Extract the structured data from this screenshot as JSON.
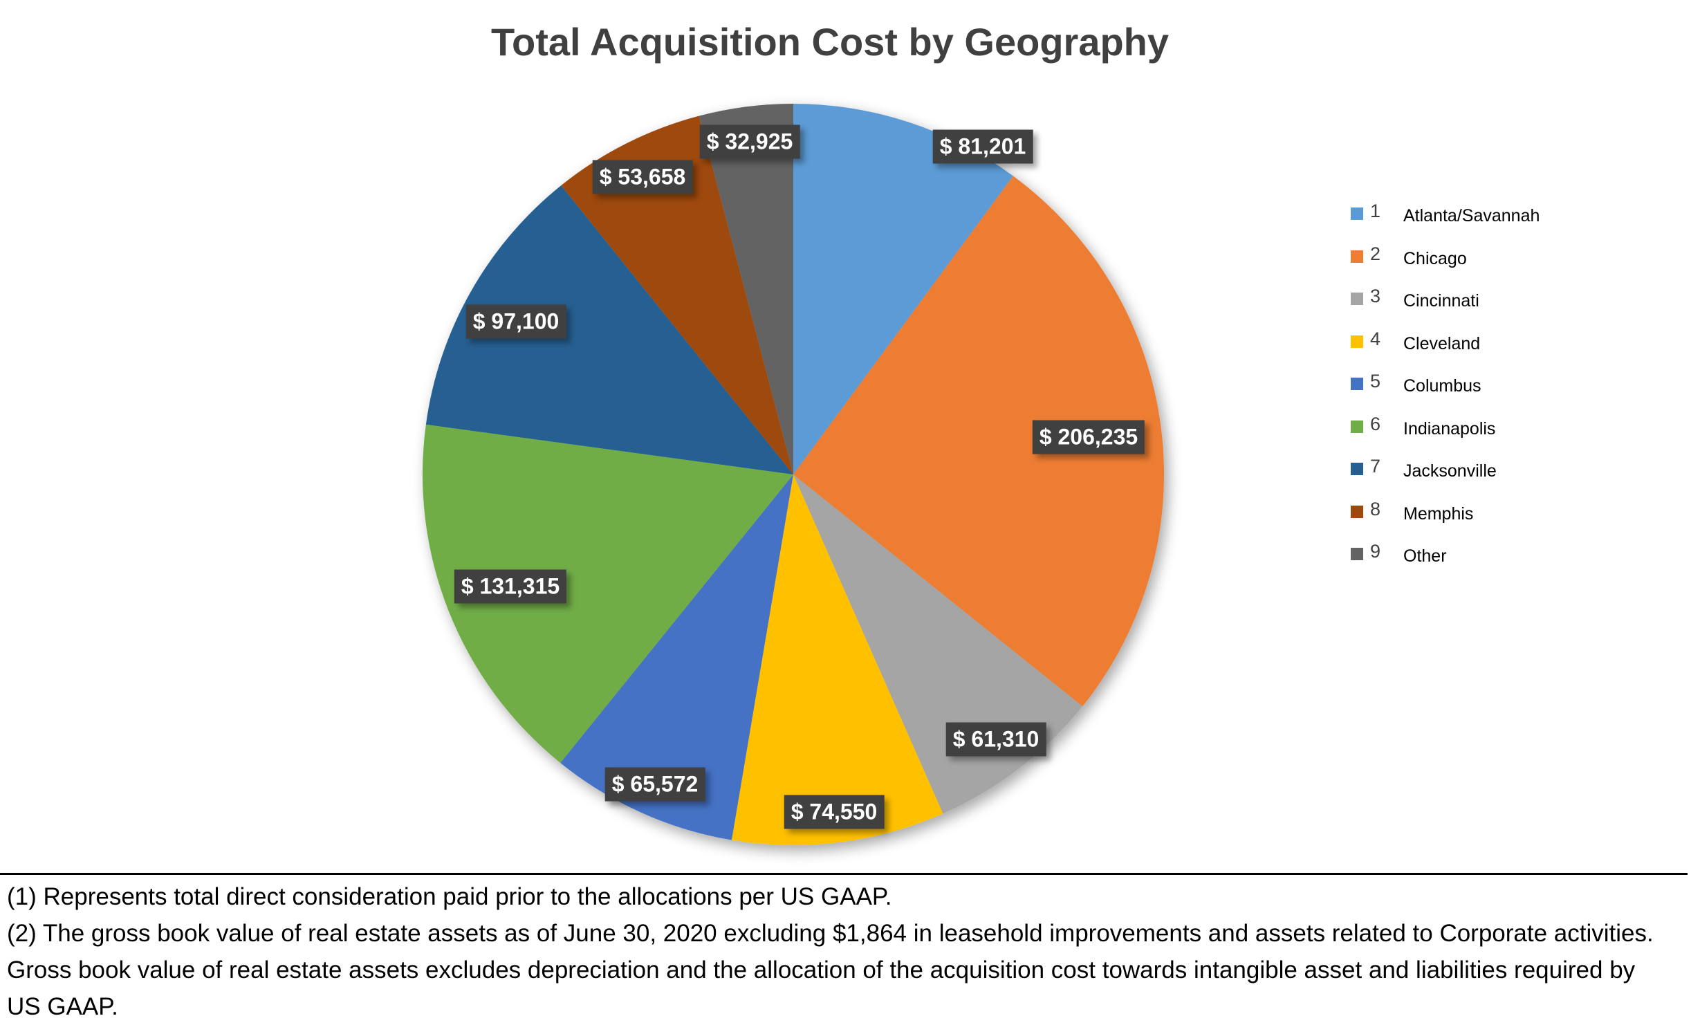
{
  "chart_data": {
    "type": "pie",
    "title": "Total Acquisition Cost by Geography",
    "start": "top, clockwise",
    "legend_position": "right",
    "slices": [
      {
        "num": "1",
        "name": "Atlanta/Savannah",
        "value": 81201,
        "label": "$ 81,201",
        "color": "#5B9BD5"
      },
      {
        "num": "2",
        "name": "Chicago",
        "value": 206235,
        "label": "$ 206,235",
        "color": "#ED7D31"
      },
      {
        "num": "3",
        "name": "Cincinnati",
        "value": 61310,
        "label": "$ 61,310",
        "color": "#A5A5A5"
      },
      {
        "num": "4",
        "name": "Cleveland",
        "value": 74550,
        "label": "$ 74,550",
        "color": "#FFC000"
      },
      {
        "num": "5",
        "name": "Columbus",
        "value": 65572,
        "label": "$ 65,572",
        "color": "#4472C4"
      },
      {
        "num": "6",
        "name": "Indianapolis",
        "value": 131315,
        "label": "$ 131,315",
        "color": "#70AD47"
      },
      {
        "num": "7",
        "name": "Jacksonville",
        "value": 97100,
        "label": "$ 97,100",
        "color": "#255E91"
      },
      {
        "num": "8",
        "name": "Memphis",
        "value": 53658,
        "label": "$ 53,658",
        "color": "#9E480E"
      },
      {
        "num": "9",
        "name": "Other",
        "value": 32925,
        "label": "$ 32,925",
        "color": "#636363"
      }
    ]
  },
  "footnotes": [
    "(1) Represents total direct consideration paid prior to the allocations per US GAAP.",
    "(2) The gross book value of real estate assets as of June 30, 2020 excluding $1,864 in leasehold improvements and assets related to Corporate activities. Gross book value of real estate assets excludes depreciation and the allocation of the acquisition cost towards intangible asset and liabilities required by US GAAP."
  ]
}
